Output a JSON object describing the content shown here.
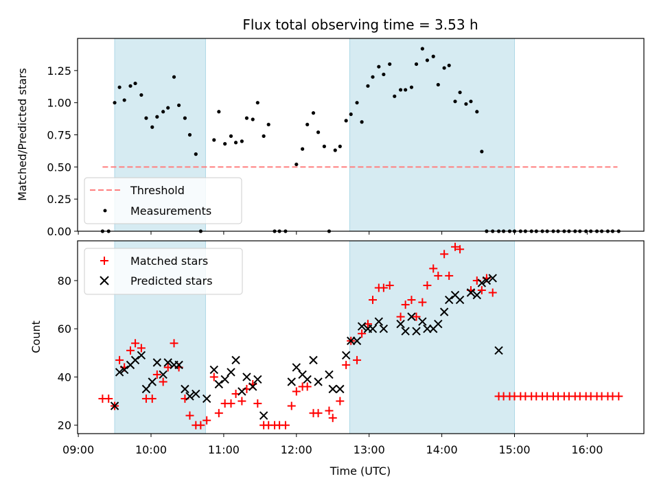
{
  "chart_data": [
    {
      "type": "scatter",
      "title": "Flux total observing time = 3.53 h",
      "xlabel": "",
      "ylabel": "Matched/Predicted stars",
      "ylim": [
        0,
        1.5
      ],
      "yticks": [
        "0.00",
        "0.25",
        "0.50",
        "0.75",
        "1.00",
        "1.25"
      ],
      "ytick_values": [
        0,
        0.25,
        0.5,
        0.75,
        1.0,
        1.25
      ],
      "xlim": [
        "09:15",
        "17:05"
      ],
      "shaded_intervals": [
        [
          "09:30",
          "10:45"
        ],
        [
          "12:44",
          "15:00"
        ]
      ],
      "threshold": {
        "name": "Threshold",
        "value": 0.5,
        "x_start": "09:20",
        "x_end": "16:25",
        "color": "#ff7f7f"
      },
      "legend": {
        "position": "lower-left",
        "entries": [
          "Threshold",
          "Measurements"
        ]
      },
      "series": [
        {
          "name": "Measurements",
          "color": "#000000",
          "points": [
            [
              "09:20",
              0
            ],
            [
              "09:25",
              0
            ],
            [
              "09:30",
              1.0
            ],
            [
              "09:34",
              1.12
            ],
            [
              "09:38",
              1.02
            ],
            [
              "09:43",
              1.13
            ],
            [
              "09:47",
              1.15
            ],
            [
              "09:52",
              1.06
            ],
            [
              "09:56",
              0.88
            ],
            [
              "10:01",
              0.81
            ],
            [
              "10:05",
              0.89
            ],
            [
              "10:10",
              0.93
            ],
            [
              "10:14",
              0.96
            ],
            [
              "10:19",
              1.2
            ],
            [
              "10:23",
              0.98
            ],
            [
              "10:28",
              0.88
            ],
            [
              "10:32",
              0.75
            ],
            [
              "10:37",
              0.6
            ],
            [
              "10:41",
              0
            ],
            [
              "10:52",
              0.71
            ],
            [
              "10:56",
              0.93
            ],
            [
              "11:01",
              0.68
            ],
            [
              "11:06",
              0.74
            ],
            [
              "11:10",
              0.69
            ],
            [
              "11:15",
              0.7
            ],
            [
              "11:19",
              0.88
            ],
            [
              "11:24",
              0.87
            ],
            [
              "11:28",
              1.0
            ],
            [
              "11:33",
              0.74
            ],
            [
              "11:37",
              0.83
            ],
            [
              "11:42",
              0
            ],
            [
              "11:46",
              0
            ],
            [
              "11:51",
              0
            ],
            [
              "12:00",
              0.52
            ],
            [
              "12:05",
              0.64
            ],
            [
              "12:09",
              0.83
            ],
            [
              "12:14",
              0.92
            ],
            [
              "12:18",
              0.77
            ],
            [
              "12:23",
              0.66
            ],
            [
              "12:27",
              0
            ],
            [
              "12:32",
              0.63
            ],
            [
              "12:36",
              0.66
            ],
            [
              "12:41",
              0.86
            ],
            [
              "12:45",
              0.91
            ],
            [
              "12:50",
              1.0
            ],
            [
              "12:54",
              0.85
            ],
            [
              "12:59",
              1.13
            ],
            [
              "13:03",
              1.2
            ],
            [
              "13:08",
              1.28
            ],
            [
              "13:12",
              1.22
            ],
            [
              "13:17",
              1.3
            ],
            [
              "13:21",
              1.05
            ],
            [
              "13:26",
              1.1
            ],
            [
              "13:30",
              1.1
            ],
            [
              "13:35",
              1.12
            ],
            [
              "13:39",
              1.3
            ],
            [
              "13:44",
              1.42
            ],
            [
              "13:48",
              1.33
            ],
            [
              "13:53",
              1.36
            ],
            [
              "13:57",
              1.14
            ],
            [
              "14:02",
              1.27
            ],
            [
              "14:06",
              1.29
            ],
            [
              "14:11",
              1.01
            ],
            [
              "14:15",
              1.08
            ],
            [
              "14:20",
              0.99
            ],
            [
              "14:24",
              1.01
            ],
            [
              "14:29",
              0.93
            ],
            [
              "14:33",
              0.62
            ],
            [
              "14:37",
              0
            ],
            [
              "14:42",
              0
            ],
            [
              "14:47",
              0
            ],
            [
              "14:51",
              0
            ],
            [
              "14:56",
              0
            ],
            [
              "15:00",
              0
            ],
            [
              "15:05",
              0
            ],
            [
              "15:09",
              0
            ],
            [
              "15:14",
              0
            ],
            [
              "15:18",
              0
            ],
            [
              "15:23",
              0
            ],
            [
              "15:27",
              0
            ],
            [
              "15:32",
              0
            ],
            [
              "15:36",
              0
            ],
            [
              "15:41",
              0
            ],
            [
              "15:45",
              0
            ],
            [
              "15:50",
              0
            ],
            [
              "15:54",
              0
            ],
            [
              "15:59",
              0
            ],
            [
              "16:03",
              0
            ],
            [
              "16:08",
              0
            ],
            [
              "16:12",
              0
            ],
            [
              "16:17",
              0
            ],
            [
              "16:21",
              0
            ],
            [
              "16:26",
              0
            ]
          ]
        }
      ]
    },
    {
      "type": "scatter",
      "title": "",
      "xlabel": "Time (UTC)",
      "ylabel": "Count",
      "ylim": [
        16.5,
        96.5
      ],
      "yticks": [
        "20",
        "40",
        "60",
        "80"
      ],
      "ytick_values": [
        20,
        40,
        60,
        80
      ],
      "xlim": [
        "09:15",
        "17:05"
      ],
      "xticks": [
        "09:00",
        "10:00",
        "11:00",
        "12:00",
        "13:00",
        "14:00",
        "15:00",
        "16:00"
      ],
      "shaded_intervals": [
        [
          "09:30",
          "10:45"
        ],
        [
          "12:44",
          "15:00"
        ]
      ],
      "legend": {
        "position": "upper-left",
        "entries": [
          "Matched stars",
          "Predicted stars"
        ]
      },
      "series": [
        {
          "name": "Matched stars",
          "marker": "plus",
          "color": "#ff0000",
          "points": [
            [
              "09:20",
              31
            ],
            [
              "09:25",
              31
            ],
            [
              "09:30",
              28
            ],
            [
              "09:34",
              47
            ],
            [
              "09:38",
              44
            ],
            [
              "09:43",
              51
            ],
            [
              "09:47",
              54
            ],
            [
              "09:52",
              52
            ],
            [
              "09:56",
              31
            ],
            [
              "10:01",
              31
            ],
            [
              "10:05",
              41
            ],
            [
              "10:10",
              38
            ],
            [
              "10:14",
              44
            ],
            [
              "10:19",
              54
            ],
            [
              "10:23",
              44
            ],
            [
              "10:28",
              31
            ],
            [
              "10:32",
              24
            ],
            [
              "10:37",
              20
            ],
            [
              "10:41",
              20
            ],
            [
              "10:46",
              22
            ],
            [
              "10:52",
              40
            ],
            [
              "10:56",
              25
            ],
            [
              "11:01",
              29
            ],
            [
              "11:06",
              29
            ],
            [
              "11:10",
              33
            ],
            [
              "11:15",
              30
            ],
            [
              "11:19",
              35
            ],
            [
              "11:24",
              37
            ],
            [
              "11:28",
              29
            ],
            [
              "11:33",
              20
            ],
            [
              "11:37",
              20
            ],
            [
              "11:42",
              20
            ],
            [
              "11:46",
              20
            ],
            [
              "11:51",
              20
            ],
            [
              "11:56",
              28
            ],
            [
              "12:00",
              34
            ],
            [
              "12:05",
              36
            ],
            [
              "12:09",
              36
            ],
            [
              "12:14",
              25
            ],
            [
              "12:18",
              25
            ],
            [
              "12:27",
              26
            ],
            [
              "12:30",
              23
            ],
            [
              "12:36",
              30
            ],
            [
              "12:41",
              45
            ],
            [
              "12:45",
              55
            ],
            [
              "12:50",
              47
            ],
            [
              "12:54",
              58
            ],
            [
              "12:59",
              62
            ],
            [
              "13:03",
              72
            ],
            [
              "13:08",
              77
            ],
            [
              "13:12",
              77
            ],
            [
              "13:17",
              78
            ],
            [
              "13:26",
              65
            ],
            [
              "13:30",
              70
            ],
            [
              "13:35",
              72
            ],
            [
              "13:39",
              65
            ],
            [
              "13:44",
              71
            ],
            [
              "13:48",
              78
            ],
            [
              "13:53",
              85
            ],
            [
              "13:57",
              82
            ],
            [
              "14:02",
              91
            ],
            [
              "14:06",
              82
            ],
            [
              "14:11",
              94
            ],
            [
              "14:15",
              93
            ],
            [
              "14:24",
              76
            ],
            [
              "14:29",
              80
            ],
            [
              "14:33",
              76
            ],
            [
              "14:37",
              81
            ],
            [
              "14:42",
              75
            ],
            [
              "14:47",
              32
            ],
            [
              "14:51",
              32
            ],
            [
              "14:56",
              32
            ],
            [
              "15:00",
              32
            ],
            [
              "15:05",
              32
            ],
            [
              "15:09",
              32
            ],
            [
              "15:14",
              32
            ],
            [
              "15:18",
              32
            ],
            [
              "15:23",
              32
            ],
            [
              "15:27",
              32
            ],
            [
              "15:32",
              32
            ],
            [
              "15:36",
              32
            ],
            [
              "15:41",
              32
            ],
            [
              "15:45",
              32
            ],
            [
              "15:50",
              32
            ],
            [
              "15:54",
              32
            ],
            [
              "15:59",
              32
            ],
            [
              "16:03",
              32
            ],
            [
              "16:08",
              32
            ],
            [
              "16:12",
              32
            ],
            [
              "16:17",
              32
            ],
            [
              "16:21",
              32
            ],
            [
              "16:26",
              32
            ]
          ]
        },
        {
          "name": "Predicted stars",
          "marker": "x",
          "color": "#000000",
          "points": [
            [
              "09:30",
              28
            ],
            [
              "09:34",
              42
            ],
            [
              "09:38",
              43
            ],
            [
              "09:43",
              45
            ],
            [
              "09:47",
              47
            ],
            [
              "09:52",
              49
            ],
            [
              "09:56",
              35
            ],
            [
              "10:01",
              38
            ],
            [
              "10:05",
              46
            ],
            [
              "10:10",
              41
            ],
            [
              "10:14",
              46
            ],
            [
              "10:19",
              45
            ],
            [
              "10:23",
              45
            ],
            [
              "10:28",
              35
            ],
            [
              "10:32",
              32
            ],
            [
              "10:37",
              33
            ],
            [
              "10:46",
              31
            ],
            [
              "10:52",
              43
            ],
            [
              "10:56",
              37
            ],
            [
              "11:01",
              39
            ],
            [
              "11:06",
              42
            ],
            [
              "11:10",
              47
            ],
            [
              "11:15",
              34
            ],
            [
              "11:19",
              40
            ],
            [
              "11:24",
              36
            ],
            [
              "11:28",
              39
            ],
            [
              "11:33",
              24
            ],
            [
              "11:56",
              38
            ],
            [
              "12:00",
              44
            ],
            [
              "12:05",
              41
            ],
            [
              "12:09",
              39
            ],
            [
              "12:14",
              47
            ],
            [
              "12:18",
              38
            ],
            [
              "12:27",
              41
            ],
            [
              "12:30",
              35
            ],
            [
              "12:36",
              35
            ],
            [
              "12:41",
              49
            ],
            [
              "12:45",
              55
            ],
            [
              "12:50",
              55
            ],
            [
              "12:54",
              61
            ],
            [
              "12:59",
              60
            ],
            [
              "13:03",
              60
            ],
            [
              "13:08",
              63
            ],
            [
              "13:12",
              60
            ],
            [
              "13:26",
              62
            ],
            [
              "13:30",
              59
            ],
            [
              "13:35",
              65
            ],
            [
              "13:39",
              59
            ],
            [
              "13:44",
              63
            ],
            [
              "13:48",
              60
            ],
            [
              "13:53",
              60
            ],
            [
              "13:57",
              62
            ],
            [
              "14:02",
              67
            ],
            [
              "14:06",
              72
            ],
            [
              "14:11",
              74
            ],
            [
              "14:15",
              72
            ],
            [
              "14:24",
              75
            ],
            [
              "14:29",
              74
            ],
            [
              "14:33",
              79
            ],
            [
              "14:37",
              80
            ],
            [
              "14:42",
              81
            ],
            [
              "14:47",
              51
            ]
          ]
        }
      ]
    }
  ]
}
